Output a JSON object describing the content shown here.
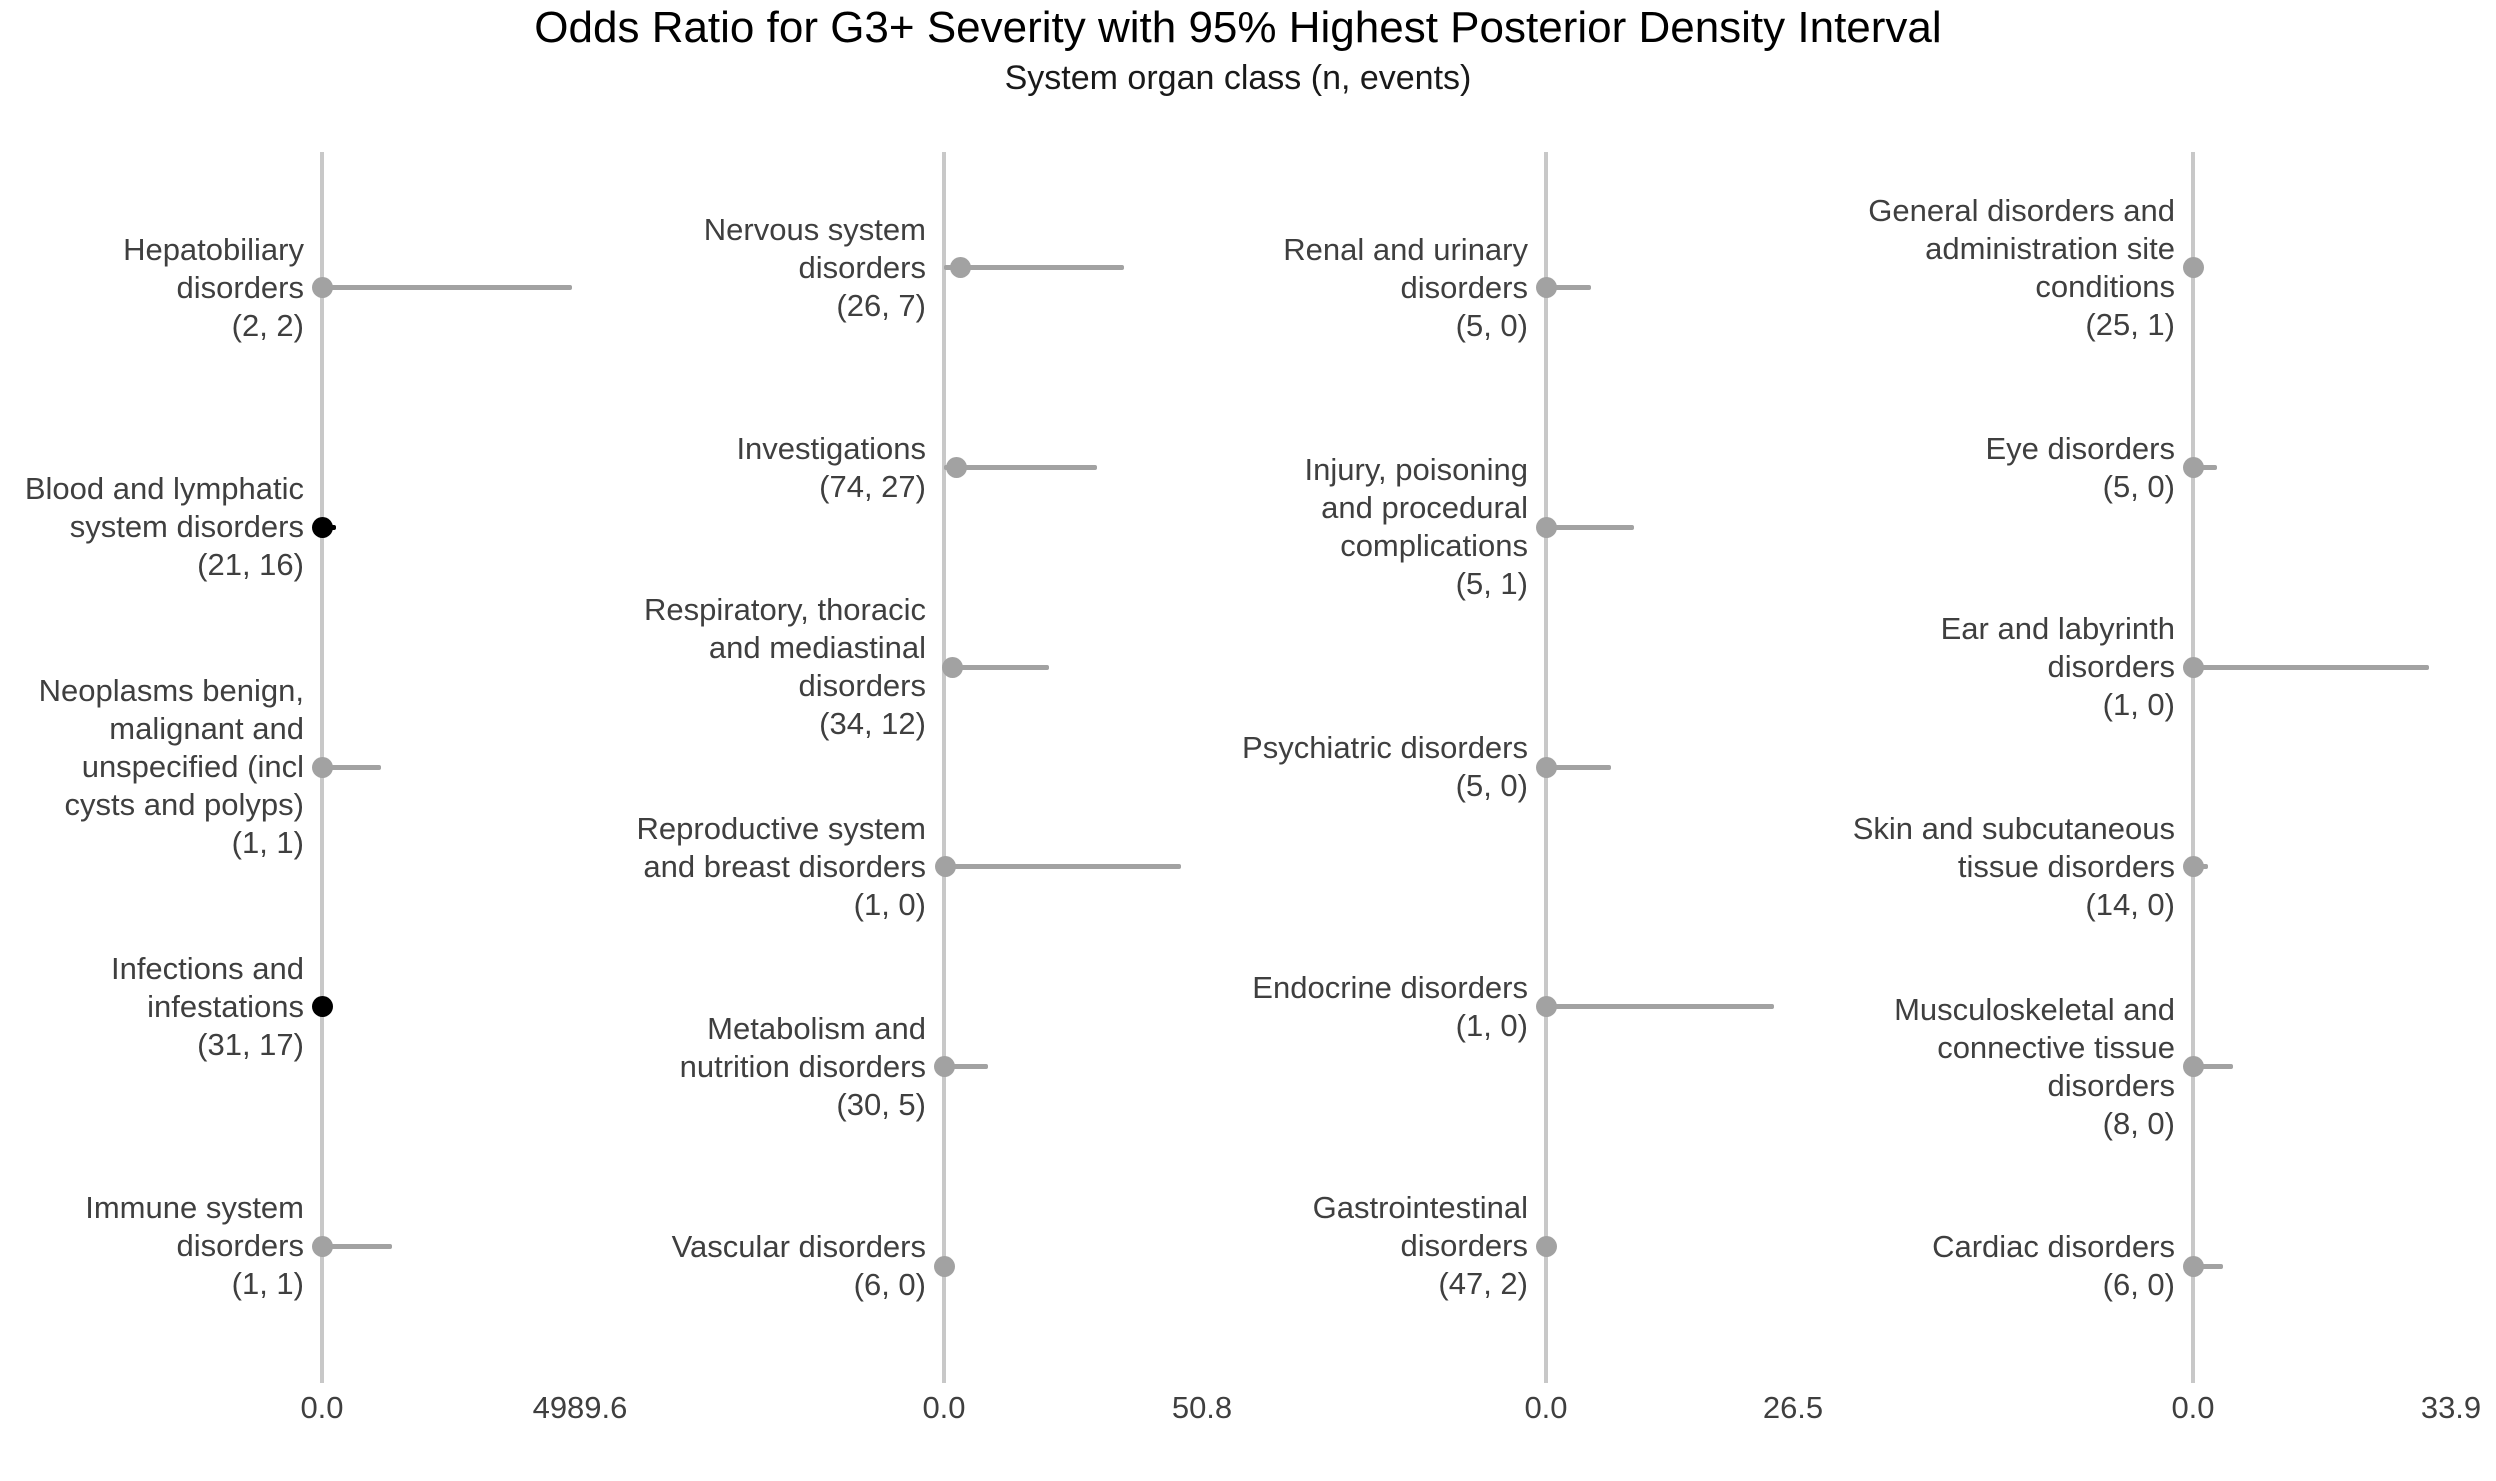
{
  "title": "Odds Ratio for G3+ Severity with 95% Highest Posterior Density Interval",
  "subtitle": "System organ class (n, events)",
  "colors": {
    "background": "#ffffff",
    "title_text": "#000000",
    "label_text": "#3f3f3f",
    "axis_line": "#c8c8c8",
    "marker_gray": "#a2a2a2",
    "marker_black": "#000000"
  },
  "chart_data": {
    "type": "scatter",
    "variant": "forest-plot-dot-with-interval",
    "grid": false,
    "legend": "none",
    "x_axis_note": "each panel has its own x scale starting at 0.0; intervals extend right from 0",
    "panels": [
      {
        "x_axis": {
          "min": 0.0,
          "max": 4989.6,
          "min_label": "0.0",
          "max_label": "4989.6"
        },
        "items": [
          {
            "name": "Hepatobiliary disorders",
            "label_lines": [
              "Hepatobiliary",
              "disorders"
            ],
            "n": 2,
            "events": 2,
            "n_events_label": "(2, 2)",
            "or": 0,
            "hpd_upper": 4835,
            "marker": "gray"
          },
          {
            "name": "Blood and lymphatic system disorders",
            "label_lines": [
              "Blood and lymphatic",
              "system disorders"
            ],
            "n": 21,
            "events": 16,
            "n_events_label": "(21, 16)",
            "or": 0,
            "hpd_upper": 270,
            "marker": "black"
          },
          {
            "name": "Neoplasms benign, malignant and unspecified (incl cysts and polyps)",
            "label_lines": [
              "Neoplasms benign,",
              "malignant and",
              "unspecified (incl",
              "cysts and polyps)"
            ],
            "n": 1,
            "events": 1,
            "n_events_label": "(1, 1)",
            "or": 0,
            "hpd_upper": 1140,
            "marker": "gray"
          },
          {
            "name": "Infections and infestations",
            "label_lines": [
              "Infections and",
              "infestations"
            ],
            "n": 31,
            "events": 17,
            "n_events_label": "(31, 17)",
            "or": 0,
            "hpd_upper": null,
            "marker": "black"
          },
          {
            "name": "Immune system disorders",
            "label_lines": [
              "Immune system",
              "disorders"
            ],
            "n": 1,
            "events": 1,
            "n_events_label": "(1, 1)",
            "or": 0,
            "hpd_upper": 1355,
            "marker": "gray"
          }
        ]
      },
      {
        "x_axis": {
          "min": 0.0,
          "max": 50.8,
          "min_label": "0.0",
          "max_label": "50.8"
        },
        "items": [
          {
            "name": "Nervous system disorders",
            "label_lines": [
              "Nervous system",
              "disorders"
            ],
            "n": 26,
            "events": 7,
            "n_events_label": "(26, 7)",
            "or": 3.3,
            "hpd_upper": 35.4,
            "marker": "gray"
          },
          {
            "name": "Investigations",
            "label_lines": [
              "Investigations"
            ],
            "n": 74,
            "events": 27,
            "n_events_label": "(74, 27)",
            "or": 2.4,
            "hpd_upper": 30.1,
            "marker": "gray"
          },
          {
            "name": "Respiratory, thoracic and mediastinal disorders",
            "label_lines": [
              "Respiratory, thoracic",
              "and mediastinal",
              "disorders"
            ],
            "n": 34,
            "events": 12,
            "n_events_label": "(34, 12)",
            "or": 1.6,
            "hpd_upper": 20.7,
            "marker": "gray"
          },
          {
            "name": "Reproductive system and breast disorders",
            "label_lines": [
              "Reproductive system",
              "and breast disorders"
            ],
            "n": 1,
            "events": 0,
            "n_events_label": "(1, 0)",
            "or": 0.3,
            "hpd_upper": 46.7,
            "marker": "gray"
          },
          {
            "name": "Metabolism and nutrition disorders",
            "label_lines": [
              "Metabolism and",
              "nutrition disorders"
            ],
            "n": 30,
            "events": 5,
            "n_events_label": "(30, 5)",
            "or": 0,
            "hpd_upper": 8.7,
            "marker": "gray"
          },
          {
            "name": "Vascular disorders",
            "label_lines": [
              "Vascular disorders"
            ],
            "n": 6,
            "events": 0,
            "n_events_label": "(6, 0)",
            "or": 0,
            "hpd_upper": 2.0,
            "marker": "gray"
          }
        ]
      },
      {
        "x_axis": {
          "min": 0.0,
          "max": 26.5,
          "min_label": "0.0",
          "max_label": "26.5"
        },
        "items": [
          {
            "name": "Renal and urinary disorders",
            "label_lines": [
              "Renal and urinary",
              "disorders"
            ],
            "n": 5,
            "events": 0,
            "n_events_label": "(5, 0)",
            "or": 0,
            "hpd_upper": 4.8,
            "marker": "gray"
          },
          {
            "name": "Injury, poisoning and procedural complications",
            "label_lines": [
              "Injury, poisoning",
              "and procedural",
              "complications"
            ],
            "n": 5,
            "events": 1,
            "n_events_label": "(5, 1)",
            "or": 0,
            "hpd_upper": 9.4,
            "marker": "gray"
          },
          {
            "name": "Psychiatric disorders",
            "label_lines": [
              "Psychiatric disorders"
            ],
            "n": 5,
            "events": 0,
            "n_events_label": "(5, 0)",
            "or": 0,
            "hpd_upper": 7.0,
            "marker": "gray"
          },
          {
            "name": "Endocrine disorders",
            "label_lines": [
              "Endocrine disorders"
            ],
            "n": 1,
            "events": 0,
            "n_events_label": "(1, 0)",
            "or": 0,
            "hpd_upper": 24.5,
            "marker": "gray"
          },
          {
            "name": "Gastrointestinal disorders",
            "label_lines": [
              "Gastrointestinal",
              "disorders"
            ],
            "n": 47,
            "events": 2,
            "n_events_label": "(47, 2)",
            "or": 0,
            "hpd_upper": null,
            "marker": "gray"
          }
        ]
      },
      {
        "x_axis": {
          "min": 0.0,
          "max": 33.9,
          "min_label": "0.0",
          "max_label": "33.9"
        },
        "items": [
          {
            "name": "General disorders and administration site conditions",
            "label_lines": [
              "General disorders and",
              "administration site",
              "conditions"
            ],
            "n": 25,
            "events": 1,
            "n_events_label": "(25, 1)",
            "or": 0,
            "hpd_upper": null,
            "marker": "gray"
          },
          {
            "name": "Eye disorders",
            "label_lines": [
              "Eye disorders"
            ],
            "n": 5,
            "events": 0,
            "n_events_label": "(5, 0)",
            "or": 0,
            "hpd_upper": 3.2,
            "marker": "gray"
          },
          {
            "name": "Ear and labyrinth disorders",
            "label_lines": [
              "Ear and labyrinth",
              "disorders"
            ],
            "n": 1,
            "events": 0,
            "n_events_label": "(1, 0)",
            "or": 0,
            "hpd_upper": 31.0,
            "marker": "gray"
          },
          {
            "name": "Skin and subcutaneous tissue disorders",
            "label_lines": [
              "Skin and subcutaneous",
              "tissue disorders"
            ],
            "n": 14,
            "events": 0,
            "n_events_label": "(14, 0)",
            "or": 0,
            "hpd_upper": 2.0,
            "marker": "gray"
          },
          {
            "name": "Musculoskeletal and connective tissue disorders",
            "label_lines": [
              "Musculoskeletal and",
              "connective tissue",
              "disorders"
            ],
            "n": 8,
            "events": 0,
            "n_events_label": "(8, 0)",
            "or": 0,
            "hpd_upper": 5.3,
            "marker": "gray"
          },
          {
            "name": "Cardiac disorders",
            "label_lines": [
              "Cardiac disorders"
            ],
            "n": 6,
            "events": 0,
            "n_events_label": "(6, 0)",
            "or": 0,
            "hpd_upper": 3.9,
            "marker": "gray"
          }
        ]
      }
    ]
  }
}
